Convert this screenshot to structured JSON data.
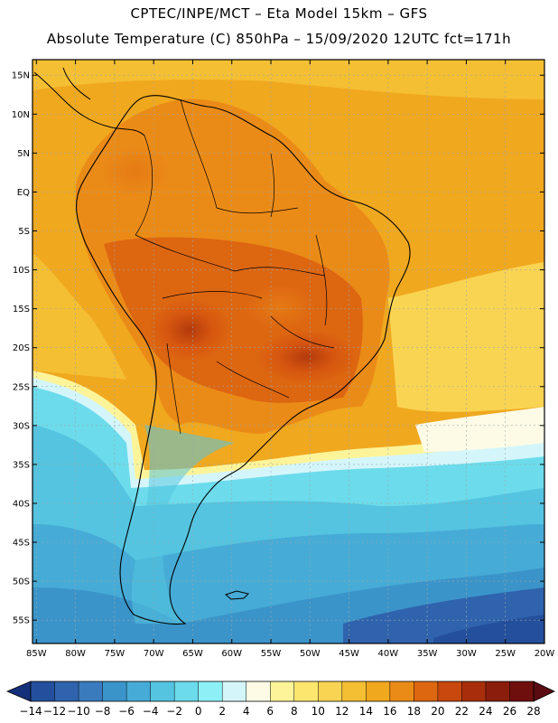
{
  "header": {
    "title": "CPTEC/INPE/MCT –  Eta Model 15km – GFS",
    "subtitle": "Absolute Temperature (C) 850hPa – 15/09/2020 12UTC fct=171h"
  },
  "map": {
    "lat_labels": [
      "15N",
      "10N",
      "5N",
      "EQ",
      "5S",
      "10S",
      "15S",
      "20S",
      "25S",
      "30S",
      "35S",
      "40S",
      "45S",
      "50S",
      "55S"
    ],
    "lat_values": [
      15,
      10,
      5,
      0,
      -5,
      -10,
      -15,
      -20,
      -25,
      -30,
      -35,
      -40,
      -45,
      -50,
      -55
    ],
    "lon_labels": [
      "85W",
      "80W",
      "75W",
      "70W",
      "65W",
      "60W",
      "55W",
      "50W",
      "45W",
      "40W",
      "35W",
      "30W",
      "25W",
      "20W"
    ],
    "lon_values": [
      -85,
      -80,
      -75,
      -70,
      -65,
      -60,
      -55,
      -50,
      -45,
      -40,
      -35,
      -30,
      -25,
      -20
    ],
    "extent": {
      "lon_min": -85.5,
      "lon_max": -20,
      "lat_min": -58,
      "lat_max": 17
    },
    "grid": true
  },
  "colorbar": {
    "labels": [
      "-14",
      "-12",
      "-10",
      "-8",
      "-6",
      "-4",
      "-2",
      "0",
      "2",
      "4",
      "6",
      "8",
      "10",
      "12",
      "14",
      "16",
      "18",
      "20",
      "22",
      "24",
      "26",
      "28"
    ],
    "colors": [
      "#1a3f8a",
      "#244f9c",
      "#2f63ad",
      "#3a7bbd",
      "#3b94c9",
      "#46abd6",
      "#54c4e0",
      "#6cdcec",
      "#8ef0f7",
      "#d4f6fb",
      "#fdfbe6",
      "#fdf49a",
      "#fce66e",
      "#f9d452",
      "#f5bf33",
      "#f0a81f",
      "#eb8b17",
      "#dd6611",
      "#c8480d",
      "#a82e0b",
      "#8b1d0c",
      "#6e0f0d"
    ],
    "under_color": "#15307a",
    "over_color": "#5a0b12"
  }
}
